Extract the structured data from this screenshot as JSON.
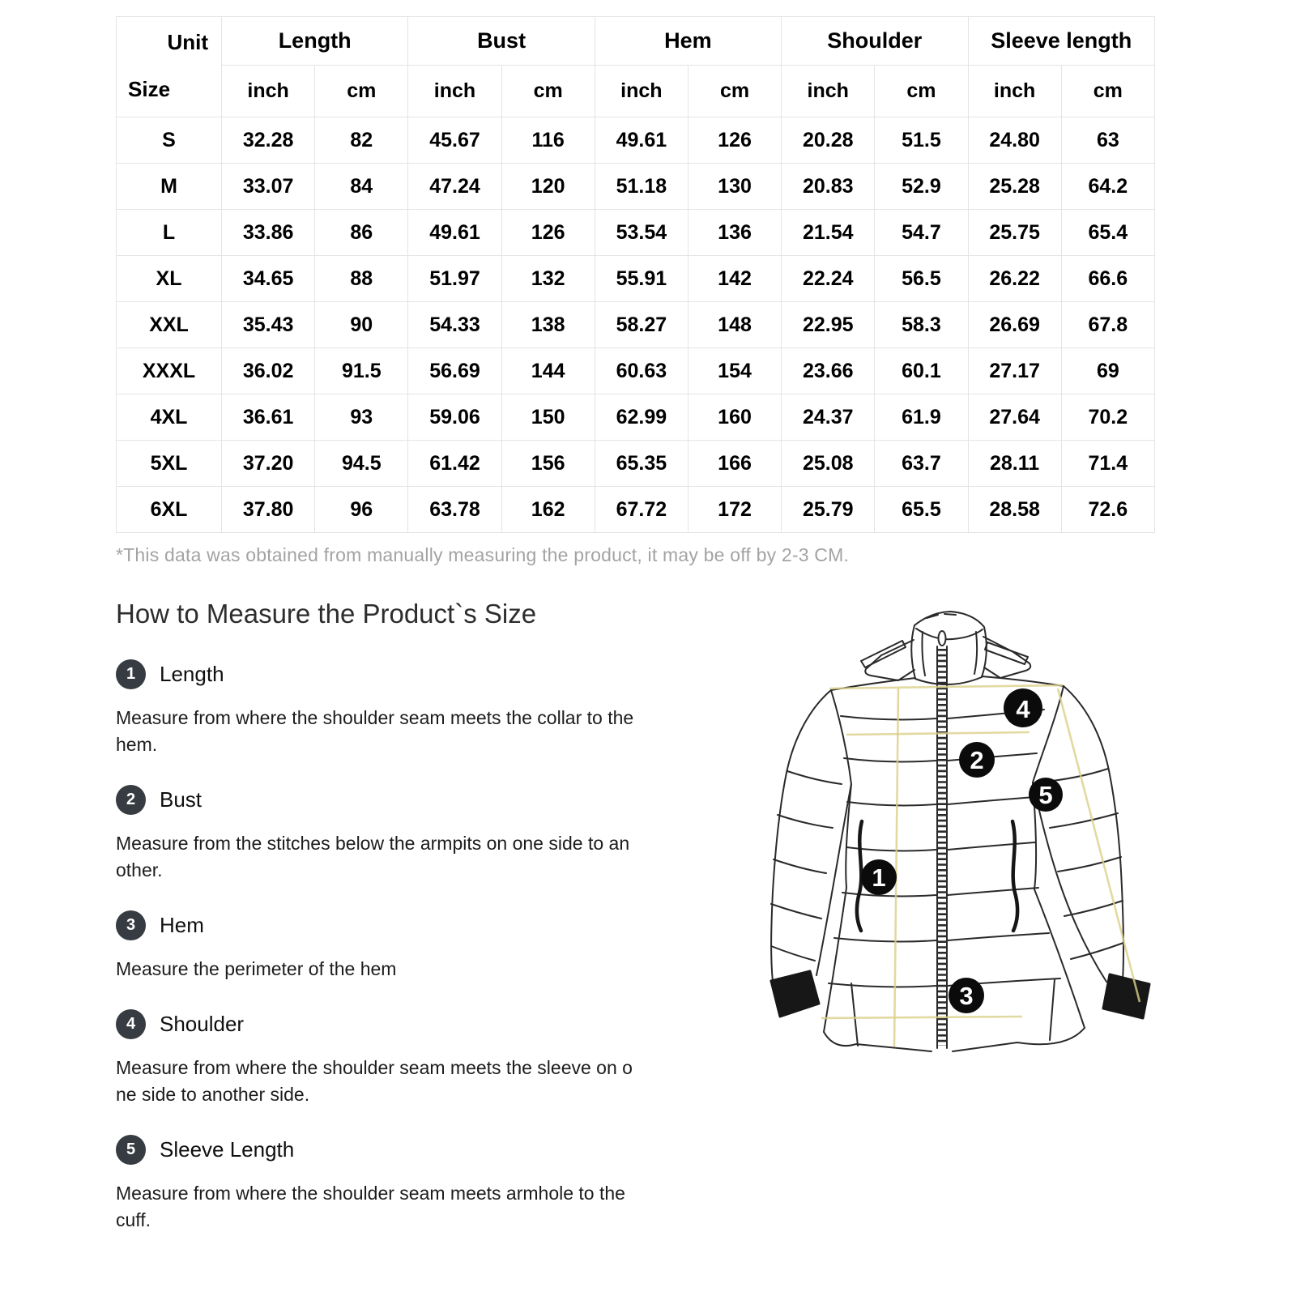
{
  "table": {
    "corner": {
      "unit": "Unit",
      "size": "Size"
    },
    "groups": [
      {
        "label": "Length"
      },
      {
        "label": "Bust"
      },
      {
        "label": "Hem"
      },
      {
        "label": "Shoulder"
      },
      {
        "label": "Sleeve length"
      }
    ],
    "subheaders": [
      "inch",
      "cm",
      "inch",
      "cm",
      "inch",
      "cm",
      "inch",
      "cm",
      "inch",
      "cm"
    ],
    "rows": [
      {
        "size": "S",
        "cells": [
          "32.28",
          "82",
          "45.67",
          "116",
          "49.61",
          "126",
          "20.28",
          "51.5",
          "24.80",
          "63"
        ]
      },
      {
        "size": "M",
        "cells": [
          "33.07",
          "84",
          "47.24",
          "120",
          "51.18",
          "130",
          "20.83",
          "52.9",
          "25.28",
          "64.2"
        ]
      },
      {
        "size": "L",
        "cells": [
          "33.86",
          "86",
          "49.61",
          "126",
          "53.54",
          "136",
          "21.54",
          "54.7",
          "25.75",
          "65.4"
        ]
      },
      {
        "size": "XL",
        "cells": [
          "34.65",
          "88",
          "51.97",
          "132",
          "55.91",
          "142",
          "22.24",
          "56.5",
          "26.22",
          "66.6"
        ]
      },
      {
        "size": "XXL",
        "cells": [
          "35.43",
          "90",
          "54.33",
          "138",
          "58.27",
          "148",
          "22.95",
          "58.3",
          "26.69",
          "67.8"
        ]
      },
      {
        "size": "XXXL",
        "cells": [
          "36.02",
          "91.5",
          "56.69",
          "144",
          "60.63",
          "154",
          "23.66",
          "60.1",
          "27.17",
          "69"
        ]
      },
      {
        "size": "4XL",
        "cells": [
          "36.61",
          "93",
          "59.06",
          "150",
          "62.99",
          "160",
          "24.37",
          "61.9",
          "27.64",
          "70.2"
        ]
      },
      {
        "size": "5XL",
        "cells": [
          "37.20",
          "94.5",
          "61.42",
          "156",
          "65.35",
          "166",
          "25.08",
          "63.7",
          "28.11",
          "71.4"
        ]
      },
      {
        "size": "6XL",
        "cells": [
          "37.80",
          "96",
          "63.78",
          "162",
          "67.72",
          "172",
          "25.79",
          "65.5",
          "28.58",
          "72.6"
        ]
      }
    ],
    "footnote": "*This data was obtained from manually measuring the product, it may be off by 2-3 CM."
  },
  "how_to": {
    "title": "How to Measure the Product`s Size",
    "steps": [
      {
        "num": "1",
        "label": "Length",
        "desc": "Measure from where the shoulder seam meets the collar to the\nhem."
      },
      {
        "num": "2",
        "label": "Bust",
        "desc": "Measure from the stitches below the armpits on one side to an\nother."
      },
      {
        "num": "3",
        "label": "Hem",
        "desc": "Measure the perimeter of the hem"
      },
      {
        "num": "4",
        "label": "Shoulder",
        "desc": "Measure from where the shoulder seam meets the sleeve on o\nne side to another side."
      },
      {
        "num": "5",
        "label": "Sleeve Length",
        "desc": "Measure from where the shoulder seam meets armhole to the\ncuff."
      }
    ]
  },
  "diagram": {
    "markers": [
      {
        "label": "1"
      },
      {
        "label": "2"
      },
      {
        "label": "3"
      },
      {
        "label": "4"
      },
      {
        "label": "5"
      }
    ],
    "guide_line_color": "#dbcf8a"
  },
  "colors": {
    "table_border": "#e4e4e4",
    "footnote_gray": "#a3a3a3",
    "badge_dark": "#363c42",
    "ink": "#2a2a2a"
  }
}
